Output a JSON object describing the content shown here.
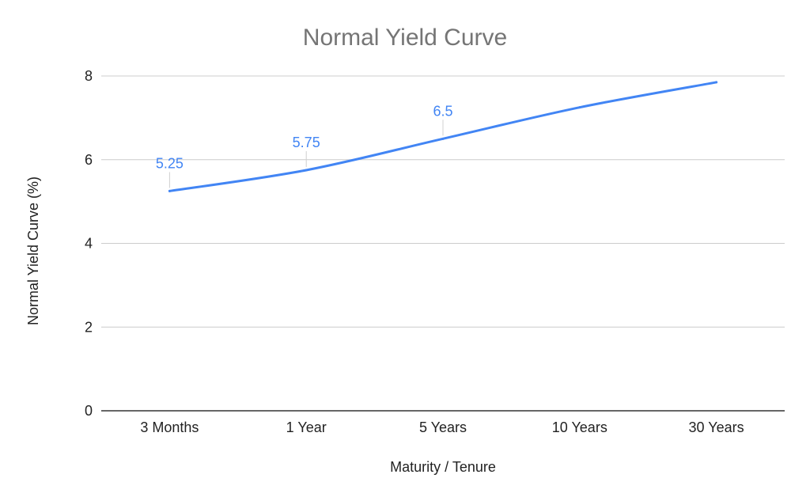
{
  "chart_data": {
    "type": "line",
    "title": "Normal Yield Curve",
    "xlabel": "Maturity / Tenure",
    "ylabel": "Normal Yield Curve (%)",
    "categories": [
      "3 Months",
      "1 Year",
      "5 Years",
      "10 Years",
      "30 Years"
    ],
    "series": [
      {
        "values": [
          5.25,
          5.75,
          6.5,
          7.25,
          7.85
        ],
        "color": "#4285f4",
        "labels": [
          "5.25",
          "5.75",
          "6.5",
          "",
          ""
        ]
      }
    ],
    "ylim": [
      0,
      8
    ],
    "yticks": [
      0,
      2,
      4,
      6,
      8
    ],
    "grid": true,
    "legend": "none"
  }
}
